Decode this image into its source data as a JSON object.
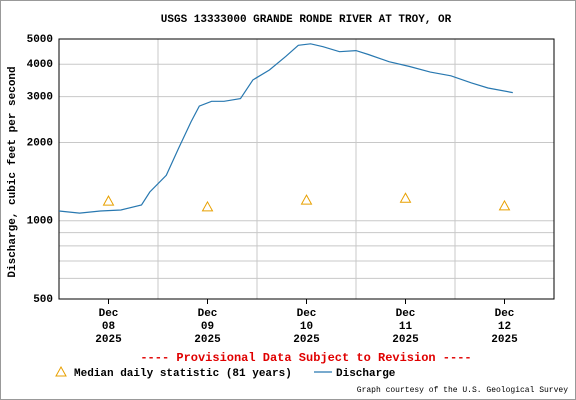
{
  "chart_data": {
    "type": "line",
    "title": "USGS 13333000 GRANDE RONDE RIVER AT TROY, OR",
    "y_label": "Discharge, cubic feet per second",
    "log_y": true,
    "grid": true,
    "ylim": [
      500,
      5000
    ],
    "yticks": [
      500,
      1000,
      2000,
      3000,
      4000,
      5000
    ],
    "minor_yticks": [
      600,
      700,
      800,
      900
    ],
    "xlim": [
      "2025-12-08T00:00",
      "2025-12-13T00:00"
    ],
    "x_gridlines": [
      "2025-12-09T00:00",
      "2025-12-10T00:00",
      "2025-12-11T00:00",
      "2025-12-12T00:00"
    ],
    "xticks": [
      {
        "value": "2025-12-08T12:00",
        "label": [
          "Dec",
          "08",
          "2025"
        ]
      },
      {
        "value": "2025-12-09T12:00",
        "label": [
          "Dec",
          "09",
          "2025"
        ]
      },
      {
        "value": "2025-12-10T12:00",
        "label": [
          "Dec",
          "10",
          "2025"
        ]
      },
      {
        "value": "2025-12-11T12:00",
        "label": [
          "Dec",
          "11",
          "2025"
        ]
      },
      {
        "value": "2025-12-12T12:00",
        "label": [
          "Dec",
          "12",
          "2025"
        ]
      }
    ],
    "series": [
      {
        "name": "Discharge",
        "color": "#2878b0",
        "marker": "line",
        "x": [
          "2025-12-08T00:00",
          "2025-12-08T05:00",
          "2025-12-08T10:00",
          "2025-12-08T15:00",
          "2025-12-08T20:00",
          "2025-12-08T22:00",
          "2025-12-09T02:00",
          "2025-12-09T05:00",
          "2025-12-09T08:00",
          "2025-12-09T10:00",
          "2025-12-09T13:00",
          "2025-12-09T16:00",
          "2025-12-09T20:00",
          "2025-12-09T23:00",
          "2025-12-10T03:00",
          "2025-12-10T07:00",
          "2025-12-10T10:00",
          "2025-12-10T13:00",
          "2025-12-10T16:00",
          "2025-12-10T20:00",
          "2025-12-11T00:00",
          "2025-12-11T03:00",
          "2025-12-11T08:00",
          "2025-12-11T13:00",
          "2025-12-11T18:00",
          "2025-12-11T23:00",
          "2025-12-12T04:00",
          "2025-12-12T08:00",
          "2025-12-12T14:00"
        ],
        "values": [
          1090,
          1070,
          1090,
          1100,
          1150,
          1290,
          1495,
          1900,
          2400,
          2760,
          2880,
          2880,
          2950,
          3480,
          3800,
          4290,
          4730,
          4790,
          4670,
          4470,
          4510,
          4360,
          4090,
          3920,
          3730,
          3610,
          3390,
          3240,
          3110
        ]
      },
      {
        "name": "Median daily statistic (81 years)",
        "color": "#e8a000",
        "marker": "triangle",
        "x": [
          "2025-12-08T12:00",
          "2025-12-09T12:00",
          "2025-12-10T12:00",
          "2025-12-11T12:00",
          "2025-12-12T12:00"
        ],
        "values": [
          1190,
          1130,
          1200,
          1220,
          1140
        ]
      }
    ],
    "annotation": "---- Provisional Data Subject to Revision ----",
    "credit": "Graph courtesy of the U.S. Geological Survey"
  }
}
